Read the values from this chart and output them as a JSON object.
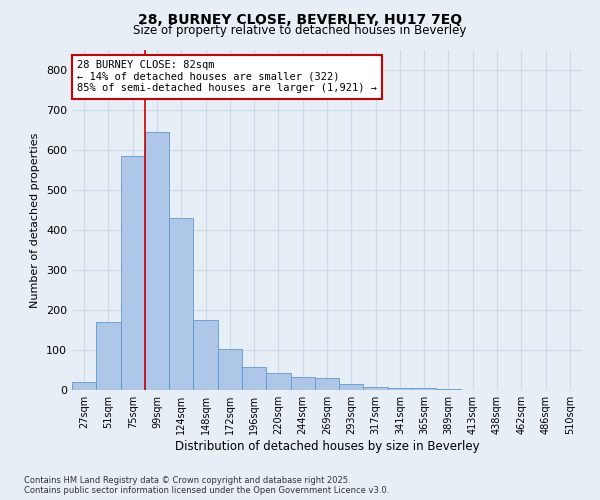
{
  "title_line1": "28, BURNEY CLOSE, BEVERLEY, HU17 7EQ",
  "title_line2": "Size of property relative to detached houses in Beverley",
  "xlabel": "Distribution of detached houses by size in Beverley",
  "ylabel": "Number of detached properties",
  "categories": [
    "27sqm",
    "51sqm",
    "75sqm",
    "99sqm",
    "124sqm",
    "148sqm",
    "172sqm",
    "196sqm",
    "220sqm",
    "244sqm",
    "269sqm",
    "293sqm",
    "317sqm",
    "341sqm",
    "365sqm",
    "389sqm",
    "413sqm",
    "438sqm",
    "462sqm",
    "486sqm",
    "510sqm"
  ],
  "values": [
    20,
    170,
    585,
    645,
    430,
    175,
    103,
    58,
    43,
    33,
    30,
    14,
    8,
    5,
    5,
    2,
    1,
    1,
    0,
    0,
    0
  ],
  "bar_color": "#aec6e8",
  "bar_edge_color": "#5b9bd5",
  "vline_color": "#cc0000",
  "annotation_text": "28 BURNEY CLOSE: 82sqm\n← 14% of detached houses are smaller (322)\n85% of semi-detached houses are larger (1,921) →",
  "annotation_box_color": "#ffffff",
  "annotation_box_edge": "#cc0000",
  "grid_color": "#cdd8e8",
  "background_color": "#e8eef5",
  "plot_bg_color": "#e8eef5",
  "footer_text": "Contains HM Land Registry data © Crown copyright and database right 2025.\nContains public sector information licensed under the Open Government Licence v3.0.",
  "ylim": [
    0,
    850
  ],
  "yticks": [
    0,
    100,
    200,
    300,
    400,
    500,
    600,
    700,
    800
  ]
}
